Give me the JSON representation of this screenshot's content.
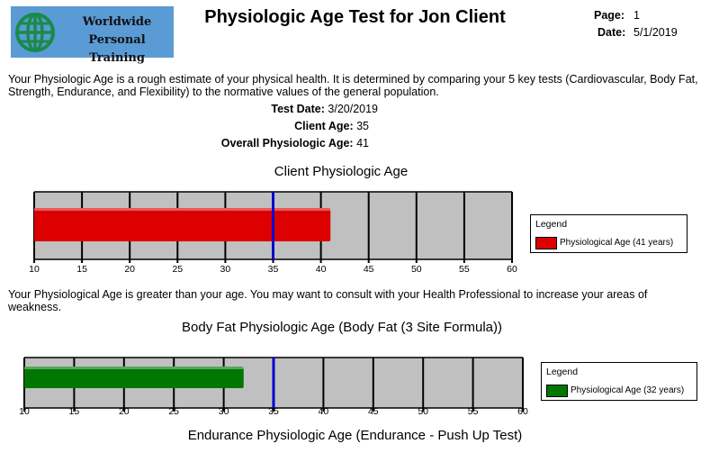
{
  "logo": {
    "line1": "Worldwide",
    "line2": "Personal Training"
  },
  "header": {
    "title": "Physiologic Age Test for Jon Client",
    "page_label": "Page:",
    "page_value": "1",
    "date_label": "Date:",
    "date_value": "5/1/2019"
  },
  "intro": "Your Physiologic Age is a rough estimate of your physical health. It is determined by comparing your 5 key tests (Cardiovascular, Body Fat, Strength, Endurance, and Flexibility) to the normative values of the general population.",
  "info": {
    "test_date_label": "Test Date:",
    "test_date": "3/20/2019",
    "client_age_label": "Client Age:",
    "client_age": "35",
    "overall_label": "Overall Physiologic Age:",
    "overall": "41"
  },
  "note": "Your Physiological Age is greater than your age.  You may want to consult with your Health Professional to increase your areas of weakness.",
  "chart_data": [
    {
      "type": "bar",
      "title": "Client Physiologic Age",
      "xlim": [
        10,
        60
      ],
      "ticks": [
        "10",
        "15",
        "20",
        "25",
        "30",
        "35",
        "40",
        "45",
        "50",
        "55",
        "60"
      ],
      "client_age_marker": 35,
      "value": 41,
      "bar_color": "#dd0000",
      "legend_title": "Legend",
      "legend_label": "Physiological Age (41 years)"
    },
    {
      "type": "bar",
      "title": "Body Fat Physiologic Age (Body Fat (3 Site Formula))",
      "xlim": [
        10,
        60
      ],
      "ticks": [
        "10",
        "15",
        "20",
        "25",
        "30",
        "35",
        "40",
        "45",
        "50",
        "55",
        "60"
      ],
      "client_age_marker": 35,
      "value": 32,
      "bar_color": "#007700",
      "legend_title": "Legend",
      "legend_label": "Physiological Age (32 years)"
    }
  ],
  "next_chart_title": "Endurance Physiologic Age (Endurance - Push Up Test)",
  "colors": {
    "logo_bg": "#5b9bd5",
    "logo_globe": "#1a8a4a",
    "plot_bg": "#c0c0c0",
    "age_marker": "#0000cc"
  }
}
